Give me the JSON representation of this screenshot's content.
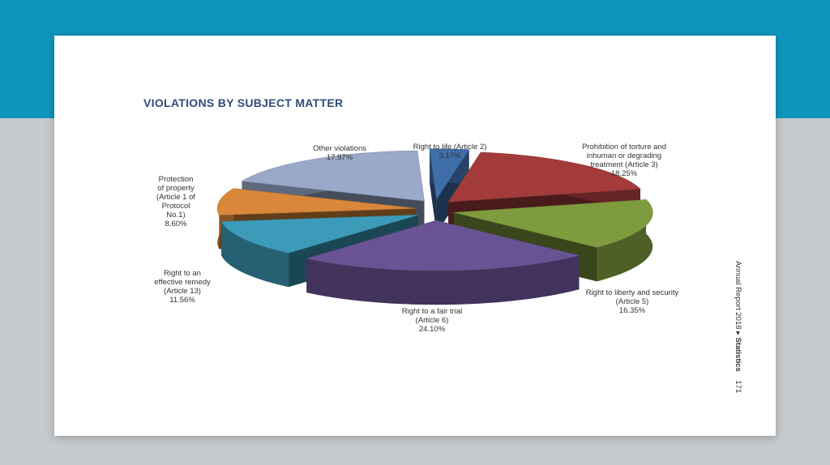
{
  "page": {
    "side_report": "Annual Report 2018",
    "side_arrow": "▸",
    "side_section": "Statistics",
    "side_page": "171"
  },
  "colors": {
    "top_band": "#0f96bd",
    "background": "#c6cacd"
  },
  "chart_data": {
    "type": "pie",
    "title": "VIOLATIONS BY SUBJECT MATTER",
    "style": "3d-exploded",
    "slices": [
      {
        "label_lines": [
          "Right to life (Article 2)",
          "3.17%"
        ],
        "category": "Right to life (Article 2)",
        "value": 3.17,
        "color": "#3f6ea8"
      },
      {
        "label_lines": [
          "Prohibition of torture and",
          "inhuman or degrading",
          "treatment (Article 3)",
          "18.25%"
        ],
        "category": "Prohibition of torture and inhuman or degrading treatment (Article 3)",
        "value": 18.25,
        "color": "#a33b3b"
      },
      {
        "label_lines": [
          "Right to liberty and security",
          "(Article 5)",
          "16.35%"
        ],
        "category": "Right to liberty and security (Article 5)",
        "value": 16.35,
        "color": "#7e9b3e"
      },
      {
        "label_lines": [
          "Right to a fair trial",
          "(Article 6)",
          "24.10%"
        ],
        "category": "Right to a fair trial (Article 6)",
        "value": 24.1,
        "color": "#6a5394"
      },
      {
        "label_lines": [
          "Right to an",
          "effective remedy",
          "(Article 13)",
          "11.56%"
        ],
        "category": "Right to an effective remedy (Article 13)",
        "value": 11.56,
        "color": "#3c9bb9"
      },
      {
        "label_lines": [
          "Protection",
          "of property",
          "(Article 1 of",
          "Protocol",
          "No.1)",
          "8.60%"
        ],
        "category": "Protection of property (Article 1 of Protocol No.1)",
        "value": 8.6,
        "color": "#d9873a"
      },
      {
        "label_lines": [
          "Other violations",
          "17.97%"
        ],
        "category": "Other violations",
        "value": 17.97,
        "color": "#9aa9c9"
      }
    ]
  }
}
